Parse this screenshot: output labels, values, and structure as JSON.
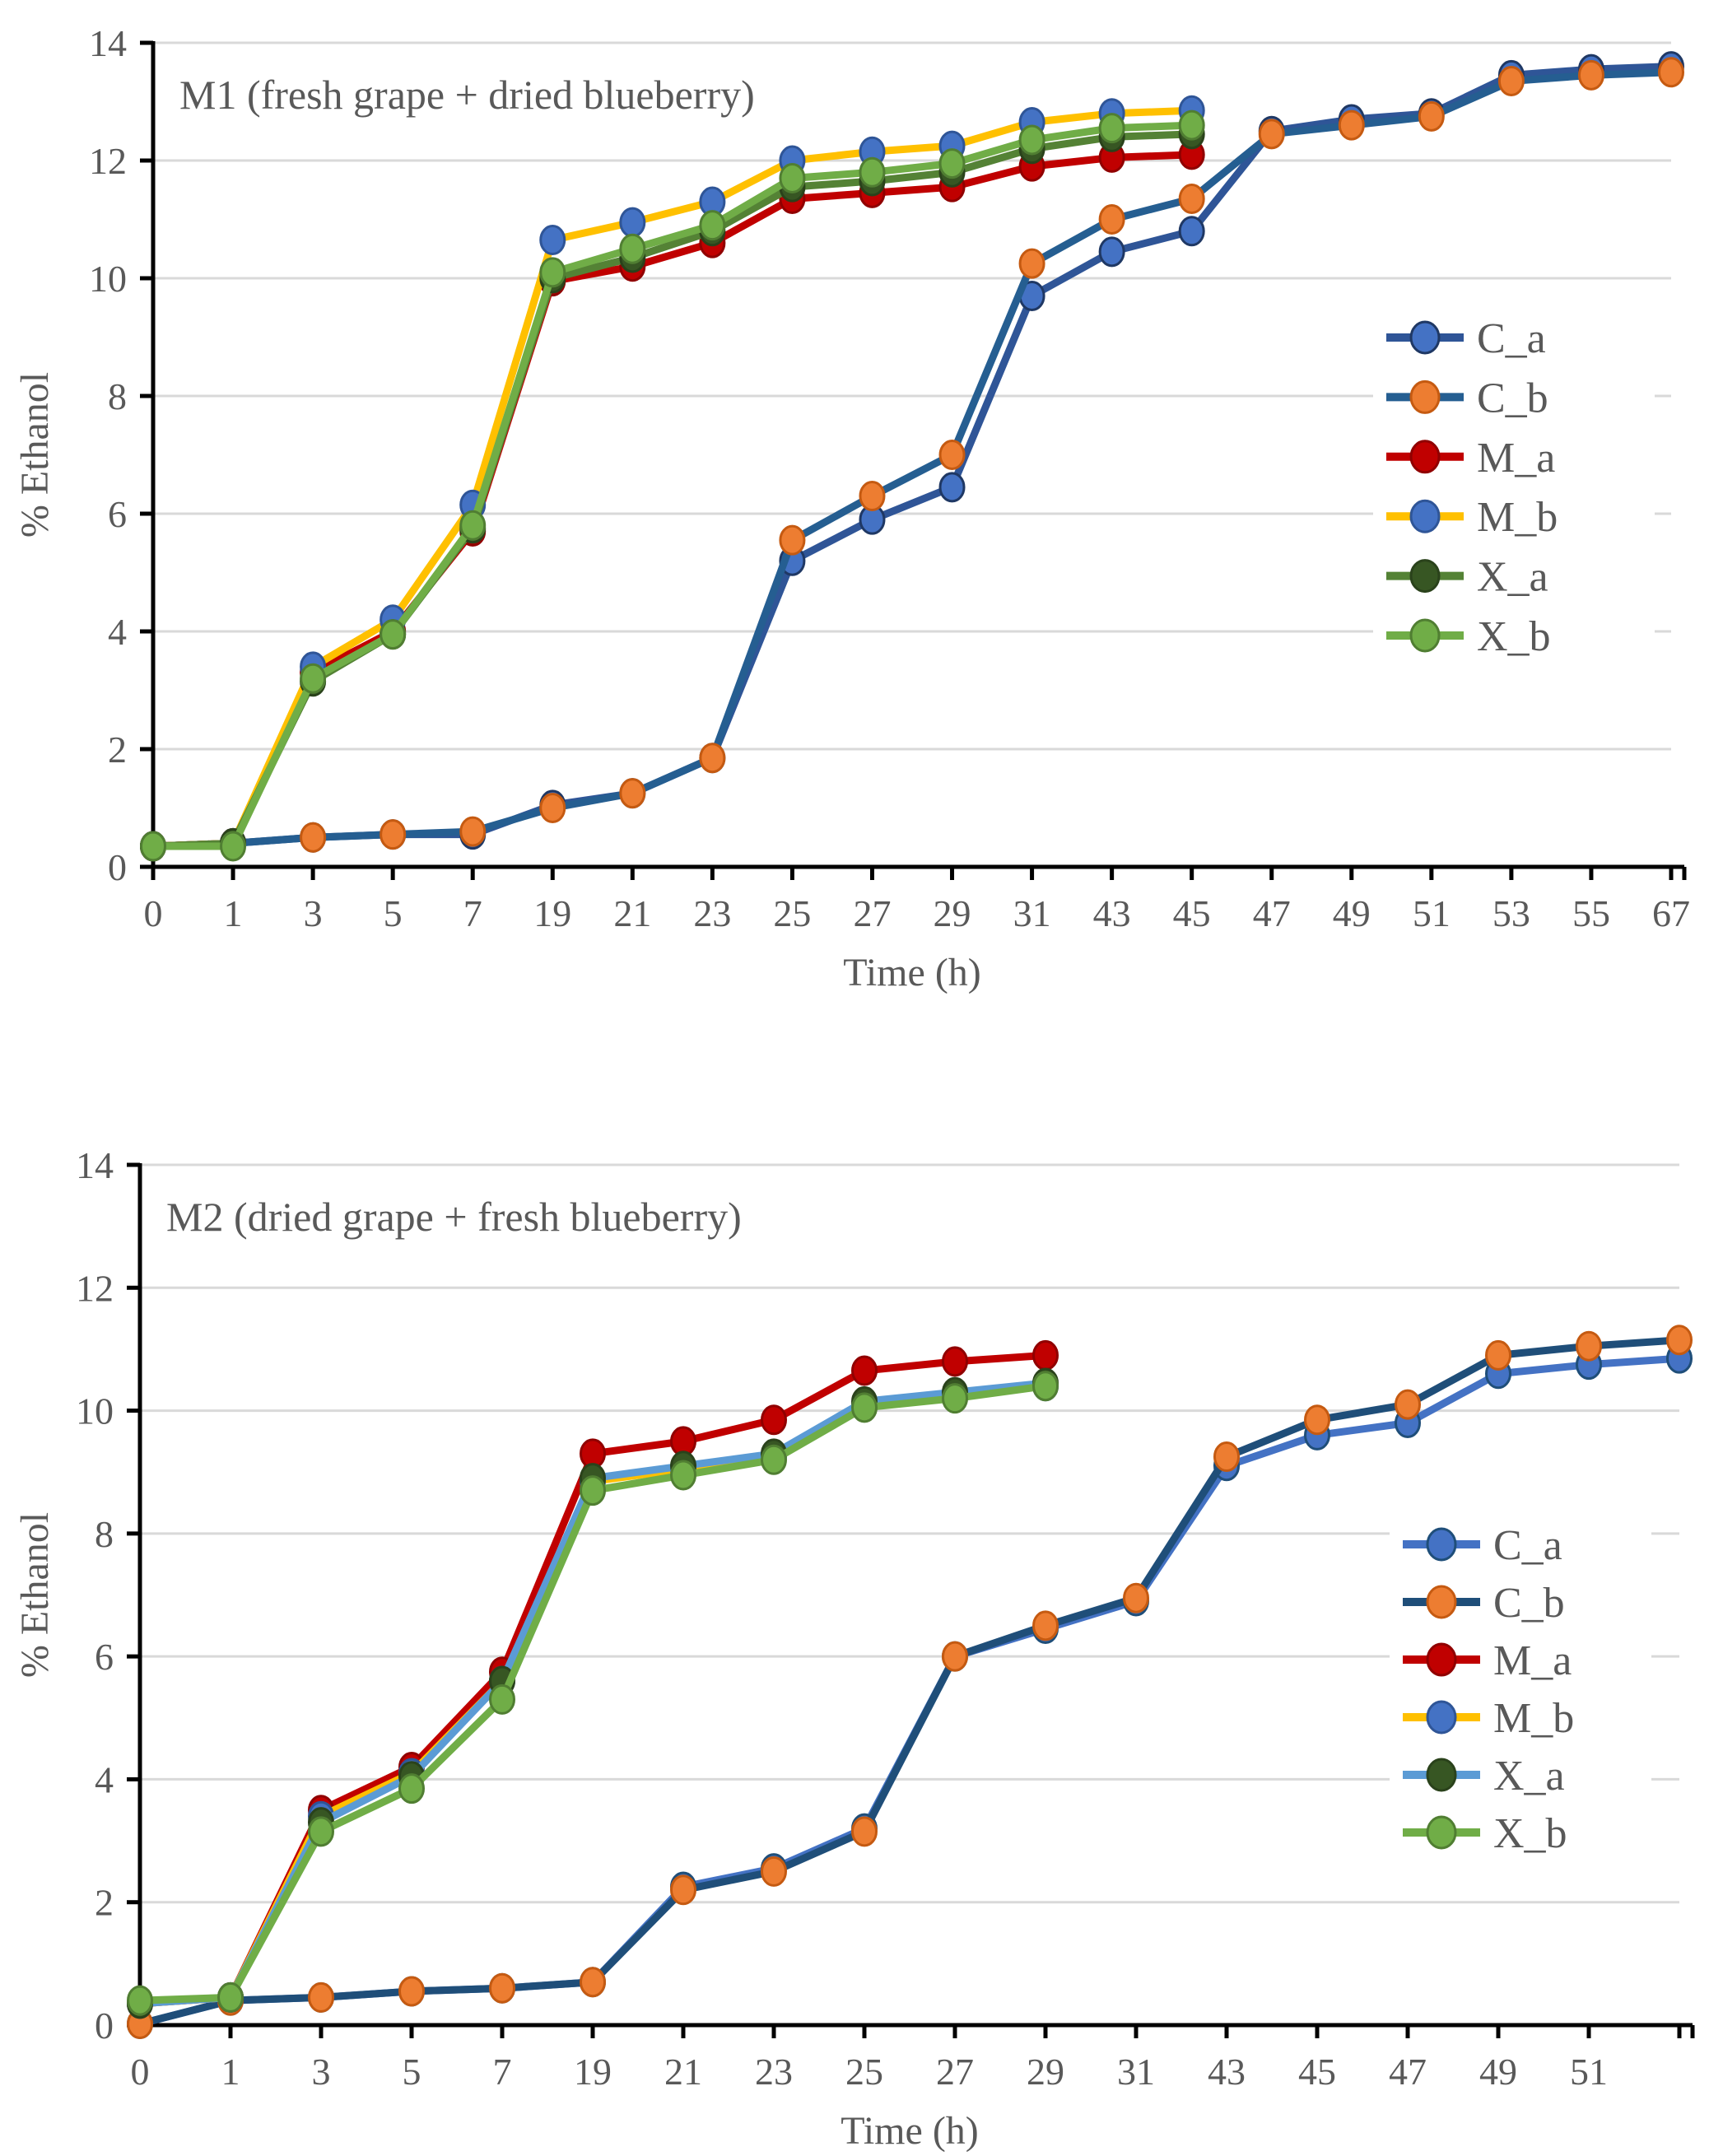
{
  "page": {
    "background": "#ffffff",
    "text_color": "#595959",
    "gridline_color": "#D9D9D9",
    "axis_color": "#000000"
  },
  "chart_data": [
    {
      "type": "line",
      "title": "M1 (fresh grape + dried blueberry)",
      "xlabel": "Time (h)",
      "ylabel": "% Ethanol",
      "ylim": [
        0,
        14
      ],
      "yticks": [
        0,
        2,
        4,
        6,
        8,
        10,
        12,
        14
      ],
      "grid": "horizontal",
      "legend_position": "right-inside",
      "categories": [
        "0",
        "1",
        "3",
        "5",
        "7",
        "19",
        "21",
        "23",
        "25",
        "27",
        "29",
        "31",
        "43",
        "45",
        "47",
        "49",
        "51",
        "53",
        "55",
        "67"
      ],
      "series": [
        {
          "name": "C_a",
          "line_color": "#2F5597",
          "marker_color": "#4472C4",
          "marker_edge": "#1F3864",
          "values": [
            0.35,
            0.4,
            0.5,
            0.55,
            0.55,
            1.05,
            1.25,
            1.85,
            5.2,
            5.9,
            6.45,
            9.7,
            10.45,
            10.8,
            12.5,
            12.7,
            12.8,
            13.45,
            13.55,
            13.6
          ]
        },
        {
          "name": "C_b",
          "line_color": "#255E91",
          "marker_color": "#ED7D31",
          "marker_edge": "#C55A11",
          "values": [
            0.35,
            0.4,
            0.5,
            0.55,
            0.6,
            1.0,
            1.25,
            1.85,
            5.55,
            6.3,
            7.0,
            10.25,
            11.0,
            11.35,
            12.45,
            12.6,
            12.75,
            13.35,
            13.45,
            13.5
          ]
        },
        {
          "name": "M_a",
          "line_color": "#C00000",
          "marker_color": "#C00000",
          "marker_edge": "#900000",
          "values": [
            0.35,
            0.4,
            3.3,
            4.0,
            5.7,
            9.95,
            10.2,
            10.6,
            11.35,
            11.45,
            11.55,
            11.9,
            12.05,
            12.1
          ]
        },
        {
          "name": "M_b",
          "line_color": "#FFC000",
          "marker_color": "#4472C4",
          "marker_edge": "#2F5597",
          "values": [
            0.35,
            0.4,
            3.4,
            4.2,
            6.15,
            10.65,
            10.95,
            11.3,
            12.0,
            12.15,
            12.25,
            12.65,
            12.8,
            12.85
          ]
        },
        {
          "name": "X_a",
          "line_color": "#548235",
          "marker_color": "#375623",
          "marker_edge": "#2A421B",
          "values": [
            0.35,
            0.4,
            3.15,
            3.95,
            5.75,
            10.0,
            10.35,
            10.8,
            11.55,
            11.65,
            11.8,
            12.2,
            12.4,
            12.45
          ]
        },
        {
          "name": "X_b",
          "line_color": "#70AD47",
          "marker_color": "#70AD47",
          "marker_edge": "#507E32",
          "values": [
            0.35,
            0.35,
            3.2,
            3.95,
            5.8,
            10.1,
            10.5,
            10.9,
            11.7,
            11.8,
            11.95,
            12.35,
            12.55,
            12.6
          ]
        }
      ]
    },
    {
      "type": "line",
      "title": "M2 (dried grape + fresh blueberry)",
      "xlabel": "Time (h)",
      "ylabel": "% Ethanol",
      "ylim": [
        0,
        14
      ],
      "yticks": [
        0,
        2,
        4,
        6,
        8,
        10,
        12,
        14
      ],
      "grid": "horizontal",
      "legend_position": "right-inside",
      "categories": [
        "0",
        "1",
        "3",
        "5",
        "7",
        "19",
        "21",
        "23",
        "25",
        "27",
        "29",
        "31",
        "43",
        "45",
        "47",
        "49",
        "51",
        ""
      ],
      "series": [
        {
          "name": "C_a",
          "line_color": "#4472C4",
          "marker_color": "#4472C4",
          "marker_edge": "#1F4E79",
          "values": [
            0.02,
            0.4,
            0.45,
            0.55,
            0.6,
            0.7,
            2.25,
            2.55,
            3.2,
            6.0,
            6.45,
            6.9,
            9.1,
            9.6,
            9.8,
            10.6,
            10.75,
            10.85
          ]
        },
        {
          "name": "C_b",
          "line_color": "#1F4E79",
          "marker_color": "#ED7D31",
          "marker_edge": "#C55A11",
          "values": [
            0.02,
            0.4,
            0.45,
            0.55,
            0.6,
            0.7,
            2.2,
            2.5,
            3.15,
            6.0,
            6.5,
            6.95,
            9.25,
            9.85,
            10.1,
            10.9,
            11.05,
            11.15
          ]
        },
        {
          "name": "M_a",
          "line_color": "#C00000",
          "marker_color": "#C00000",
          "marker_edge": "#900000",
          "values": [
            0.35,
            0.45,
            3.5,
            4.2,
            5.75,
            9.3,
            9.5,
            9.85,
            10.65,
            10.8,
            10.9
          ]
        },
        {
          "name": "M_b",
          "line_color": "#FFC000",
          "marker_color": "#4472C4",
          "marker_edge": "#2F5597",
          "values": [
            0.35,
            0.45,
            3.4,
            4.1,
            5.6,
            8.85,
            9.05,
            9.25,
            10.1,
            10.25,
            10.4
          ]
        },
        {
          "name": "X_a",
          "line_color": "#5B9BD5",
          "marker_color": "#375623",
          "marker_edge": "#2A421B",
          "values": [
            0.35,
            0.45,
            3.3,
            4.05,
            5.6,
            8.9,
            9.1,
            9.3,
            10.15,
            10.3,
            10.45
          ]
        },
        {
          "name": "X_b",
          "line_color": "#70AD47",
          "marker_color": "#70AD47",
          "marker_edge": "#507E32",
          "values": [
            0.4,
            0.45,
            3.15,
            3.85,
            5.3,
            8.7,
            8.95,
            9.2,
            10.05,
            10.2,
            10.4
          ]
        }
      ]
    }
  ]
}
